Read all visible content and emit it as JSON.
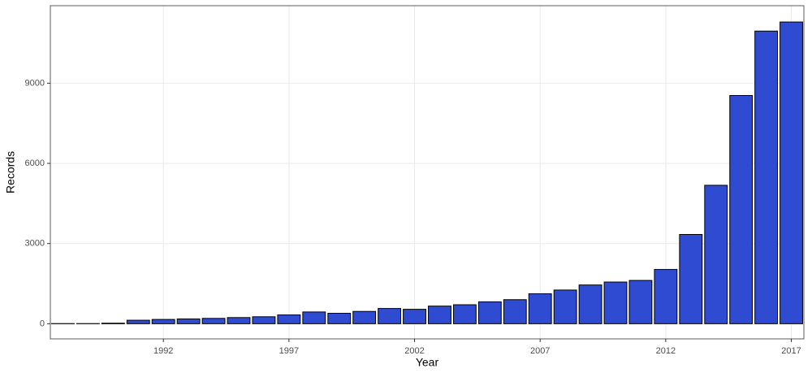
{
  "chart_data": {
    "type": "bar",
    "x_label": "Year",
    "y_label": "Records",
    "x": [
      1988,
      1989,
      1990,
      1991,
      1992,
      1993,
      1994,
      1995,
      1996,
      1997,
      1998,
      1999,
      2000,
      2001,
      2002,
      2003,
      2004,
      2005,
      2006,
      2007,
      2008,
      2009,
      2010,
      2011,
      2012,
      2013,
      2014,
      2015,
      2016,
      2017
    ],
    "values": [
      5,
      5,
      20,
      130,
      160,
      180,
      200,
      230,
      260,
      330,
      440,
      390,
      460,
      570,
      540,
      660,
      710,
      820,
      900,
      1120,
      1260,
      1450,
      1560,
      1620,
      2030,
      3340,
      5180,
      8540,
      10950,
      11290
    ],
    "color": "#2f4bd2",
    "xlim": [
      1987.5,
      2017.5
    ],
    "xticks": [
      1992,
      1997,
      2002,
      2007,
      2012,
      2017
    ],
    "ylim": [
      -567,
      11900
    ],
    "yticks": [
      0,
      3000,
      6000,
      9000
    ],
    "grid": true
  }
}
